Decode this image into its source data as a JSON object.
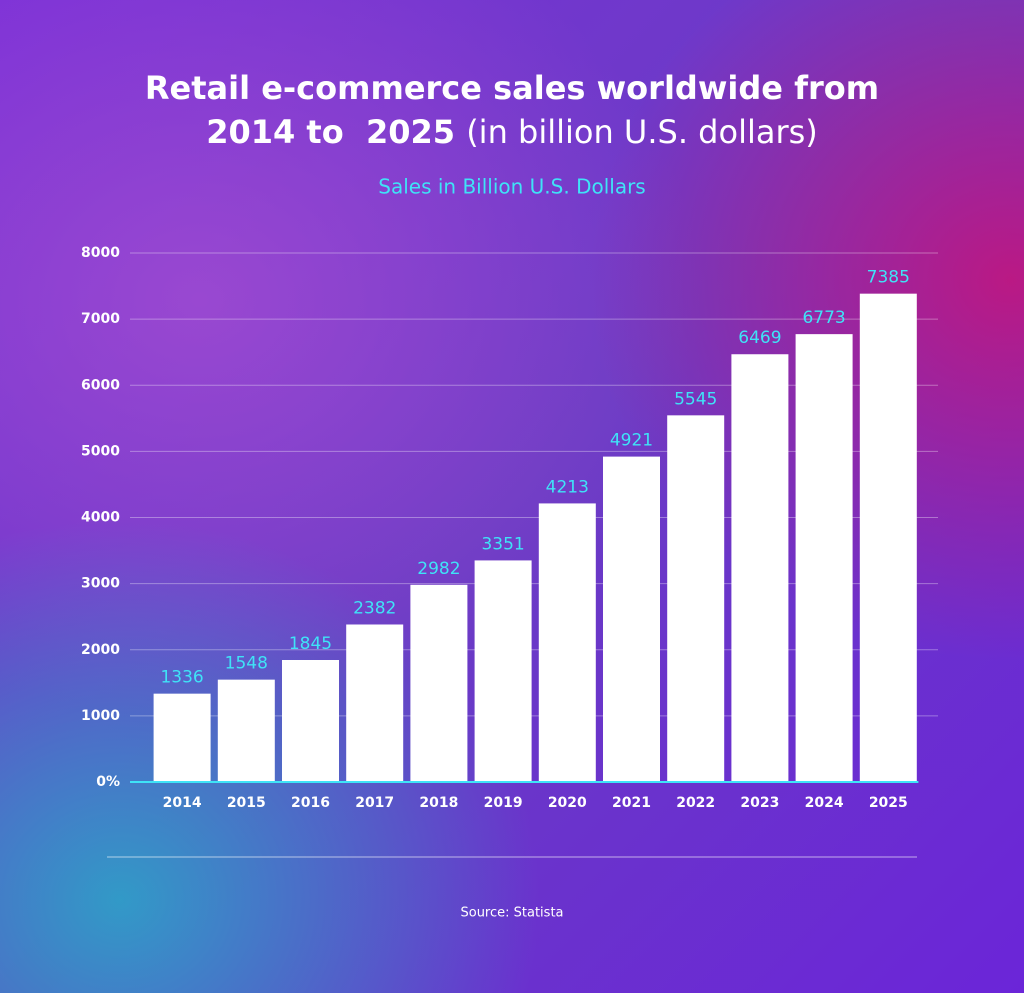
{
  "chart_data": {
    "type": "bar",
    "title": "Retail e-commerce sales worldwide from 2014 to  2025",
    "title_note": "(in billion U.S. dollars)",
    "subtitle": "Sales in Billion U.S. Dollars",
    "source": "Source: Statista",
    "categories": [
      "2014",
      "2015",
      "2016",
      "2017",
      "2018",
      "2019",
      "2020",
      "2021",
      "2022",
      "2023",
      "2024",
      "2025"
    ],
    "values": [
      1336,
      1548,
      1845,
      2382,
      2982,
      3351,
      4213,
      4921,
      5545,
      6469,
      6773,
      7385
    ],
    "color": "#ffffff",
    "label_color": "#3fe3f7",
    "ylim": [
      0,
      8000
    ],
    "yticks": [
      {
        "value": 0,
        "label": "0%"
      },
      1000,
      2000,
      3000,
      4000,
      5000,
      6000,
      7000,
      8000
    ],
    "grid": true
  }
}
